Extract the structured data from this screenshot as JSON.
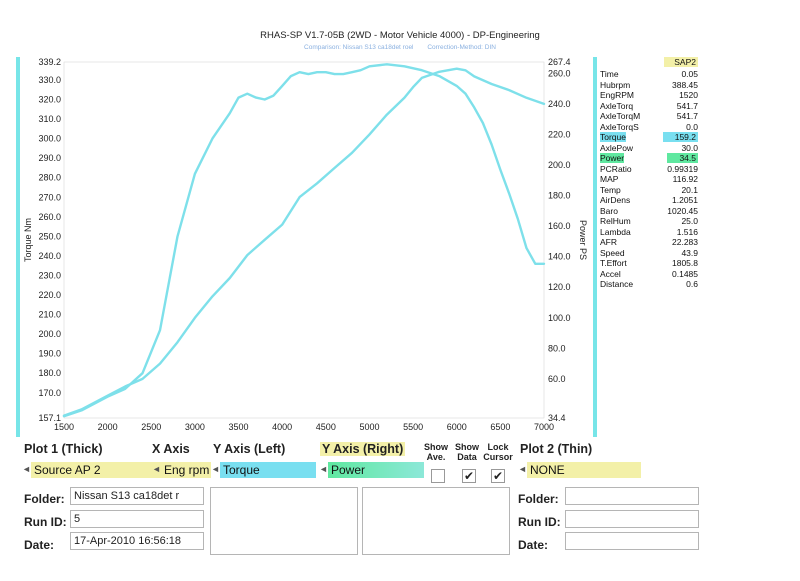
{
  "header": {
    "title": "RHAS-SP V1.7-05B   (2WD - Motor Vehicle 4000) - DP-Engineering",
    "comparison": "Comparison: Nissan S13 ca18det roel",
    "correction": "Correction-Method: DIN"
  },
  "colors": {
    "curve": "#7ee0ea",
    "torque_hl": "#79dff0",
    "power_hl": "#5fe8a0",
    "head_hl": "#f3f0a8",
    "bar": "#77e5e8"
  },
  "chart_data": {
    "type": "line",
    "xlabel": "",
    "ylabel_left": "Torque Nm",
    "ylabel_right": "Power PS",
    "xlim": [
      1500,
      7000
    ],
    "ylim_left": [
      157.1,
      339.2
    ],
    "ylim_right": [
      34.4,
      267.4
    ],
    "x_ticks": [
      "1500",
      "2000",
      "2500",
      "3000",
      "3500",
      "4000",
      "4500",
      "5000",
      "5500",
      "6000",
      "6500",
      "7000"
    ],
    "left_ticks": [
      "339.2",
      "330.0",
      "320.0",
      "310.0",
      "300.0",
      "290.0",
      "280.0",
      "270.0",
      "260.0",
      "250.0",
      "240.0",
      "230.0",
      "220.0",
      "210.0",
      "200.0",
      "190.0",
      "180.0",
      "170.0",
      "157.1"
    ],
    "right_ticks": [
      "267.4",
      "260.0",
      "240.0",
      "220.0",
      "200.0",
      "180.0",
      "160.0",
      "140.0",
      "120.0",
      "100.0",
      "80.0",
      "60.0",
      "34.4"
    ],
    "series": [
      {
        "name": "Torque",
        "axis": "left",
        "x": [
          1500,
          1700,
          2000,
          2200,
          2400,
          2600,
          2800,
          3000,
          3200,
          3400,
          3500,
          3600,
          3700,
          3800,
          3900,
          4000,
          4100,
          4200,
          4300,
          4400,
          4500,
          4600,
          4700,
          4800,
          4900,
          5000,
          5200,
          5400,
          5600,
          5800,
          6000,
          6100,
          6200,
          6300,
          6400,
          6500,
          6600,
          6700,
          6800,
          6900,
          7000
        ],
        "y": [
          158,
          161,
          168,
          172,
          180,
          202,
          250,
          282,
          300,
          313,
          321,
          323,
          321,
          320,
          322,
          327,
          332,
          334,
          333,
          334,
          334,
          333,
          333,
          334,
          335,
          337,
          338,
          337,
          335,
          332,
          327,
          323,
          316,
          308,
          297,
          284,
          272,
          259,
          244,
          236,
          236
        ]
      },
      {
        "name": "Power",
        "axis": "right",
        "x": [
          1500,
          1700,
          2000,
          2200,
          2400,
          2600,
          2800,
          3000,
          3200,
          3400,
          3600,
          3800,
          4000,
          4200,
          4400,
          4600,
          4800,
          5000,
          5200,
          5400,
          5500,
          5600,
          5800,
          6000,
          6100,
          6200,
          6400,
          6600,
          6800,
          7000
        ],
        "y": [
          36,
          40,
          49,
          55,
          60,
          70,
          84,
          100,
          114,
          126,
          141,
          151,
          161,
          179,
          188,
          198,
          208,
          220,
          233,
          244,
          251,
          257,
          261,
          263,
          262,
          258,
          253,
          249,
          244,
          240
        ]
      }
    ]
  },
  "panel": {
    "head": "SAP2",
    "rows": [
      {
        "name": "Time",
        "value": "0.05",
        "hl": ""
      },
      {
        "name": "Hubrpm",
        "value": "388.45",
        "hl": ""
      },
      {
        "name": "EngRPM",
        "value": "1520",
        "hl": ""
      },
      {
        "name": "AxleTorq",
        "value": "541.7",
        "hl": ""
      },
      {
        "name": "AxleTorqM",
        "value": "541.7",
        "hl": ""
      },
      {
        "name": "AxleTorqS",
        "value": "0.0",
        "hl": ""
      },
      {
        "name": "Torque",
        "value": "159.2",
        "hl": "torque"
      },
      {
        "name": "AxlePow",
        "value": "30.0",
        "hl": ""
      },
      {
        "name": "Power",
        "value": "34.5",
        "hl": "power"
      },
      {
        "name": "PCRatio",
        "value": "0.99319",
        "hl": ""
      },
      {
        "name": "MAP",
        "value": "116.92",
        "hl": ""
      },
      {
        "name": "Temp",
        "value": "20.1",
        "hl": ""
      },
      {
        "name": "AirDens",
        "value": "1.2051",
        "hl": ""
      },
      {
        "name": "Baro",
        "value": "1020.45",
        "hl": ""
      },
      {
        "name": "RelHum",
        "value": "25.0",
        "hl": ""
      },
      {
        "name": "Lambda",
        "value": "1.516",
        "hl": ""
      },
      {
        "name": "AFR",
        "value": "22.283",
        "hl": ""
      },
      {
        "name": "Speed",
        "value": "43.9",
        "hl": ""
      },
      {
        "name": "T.Effort",
        "value": "1805.8",
        "hl": ""
      },
      {
        "name": "Accel",
        "value": "0.1485",
        "hl": ""
      },
      {
        "name": "Distance",
        "value": "0.6",
        "hl": ""
      }
    ]
  },
  "controls": {
    "plot1_label": "Plot 1 (Thick)",
    "xaxis_label": "X Axis",
    "yleft_label": "Y Axis (Left)",
    "yright_label": "Y Axis (Right)",
    "show_ave_1": "Show",
    "show_ave_2": "Ave.",
    "show_data_1": "Show",
    "show_data_2": "Data",
    "lock_cursor_1": "Lock",
    "lock_cursor_2": "Cursor",
    "plot2_label": "Plot 2 (Thin)",
    "plot1_value": "Source AP 2",
    "xaxis_value": "Eng rpm",
    "yleft_value": "Torque",
    "yright_value": "Power",
    "plot2_value": "NONE",
    "arrows": "◄►",
    "check": "✔"
  },
  "form": {
    "folder_label": "Folder:",
    "runid_label": "Run ID:",
    "date_label": "Date:",
    "folder_value": "Nissan S13 ca18det r",
    "runid_value": "5",
    "date_value": "17-Apr-2010  16:56:18",
    "folder2_label": "Folder:",
    "runid2_label": "Run ID:",
    "date2_label": "Date:"
  }
}
